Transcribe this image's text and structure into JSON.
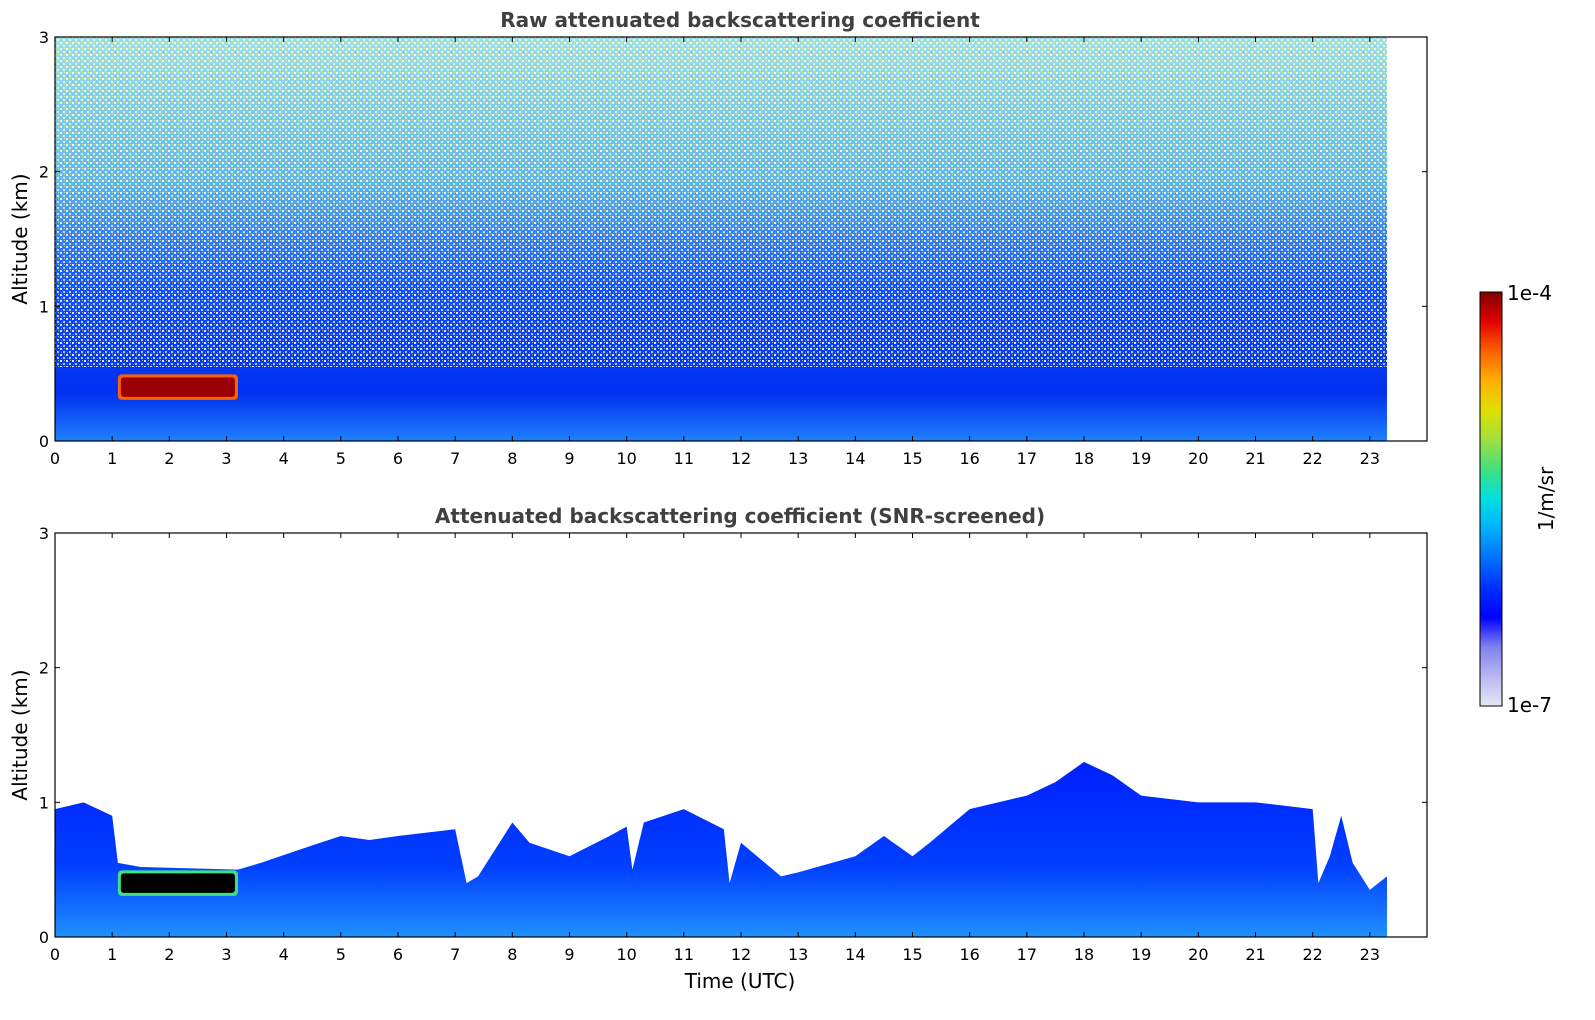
{
  "chart_data": [
    {
      "type": "heatmap",
      "title": "Raw attenuated backscattering coefficient",
      "xlabel": "",
      "ylabel": "Altitude (km)",
      "xlim": [
        0,
        24
      ],
      "ylim": [
        0,
        3
      ],
      "x_ticks": [
        "0",
        "1",
        "2",
        "3",
        "4",
        "5",
        "6",
        "7",
        "8",
        "9",
        "10",
        "11",
        "12",
        "13",
        "14",
        "15",
        "16",
        "17",
        "18",
        "19",
        "20",
        "21",
        "22",
        "23"
      ],
      "y_ticks": [
        "0",
        "1",
        "2",
        "3"
      ],
      "data_extent_hours": [
        0,
        23.3
      ],
      "features": [
        {
          "label": "aerosol layer",
          "x_range": [
            1.1,
            3.2
          ],
          "y_range": [
            0.32,
            0.48
          ],
          "value": "1e-4"
        },
        {
          "label": "boundary layer",
          "x_range": [
            0,
            23.3
          ],
          "y_range": [
            0,
            0.5
          ]
        }
      ]
    },
    {
      "type": "heatmap",
      "title": "Attenuated backscattering coefficient (SNR-screened)",
      "xlabel": "Time (UTC)",
      "ylabel": "Altitude (km)",
      "xlim": [
        0,
        24
      ],
      "ylim": [
        0,
        3
      ],
      "x_ticks": [
        "0",
        "1",
        "2",
        "3",
        "4",
        "5",
        "6",
        "7",
        "8",
        "9",
        "10",
        "11",
        "12",
        "13",
        "14",
        "15",
        "16",
        "17",
        "18",
        "19",
        "20",
        "21",
        "22",
        "23"
      ],
      "y_ticks": [
        "0",
        "1",
        "2",
        "3"
      ],
      "data_extent_hours": [
        0,
        23.3
      ],
      "layer_top_profile": {
        "x": [
          0,
          0.5,
          1.0,
          1.1,
          1.5,
          3.2,
          3.6,
          4.5,
          5.0,
          5.5,
          6.0,
          7.0,
          7.2,
          7.4,
          8.0,
          8.3,
          9.0,
          9.7,
          10.0,
          10.1,
          10.3,
          11.0,
          11.7,
          11.8,
          12.0,
          12.7,
          13.0,
          14.0,
          14.5,
          15.0,
          15.3,
          16.0,
          17.0,
          17.5,
          18.0,
          18.5,
          19.0,
          20.0,
          21.0,
          22.0,
          22.1,
          22.3,
          22.5,
          22.7,
          23.0,
          23.3
        ],
        "y": [
          0.95,
          1.0,
          0.9,
          0.55,
          0.52,
          0.5,
          0.55,
          0.68,
          0.75,
          0.72,
          0.75,
          0.8,
          0.4,
          0.45,
          0.85,
          0.7,
          0.6,
          0.75,
          0.82,
          0.5,
          0.85,
          0.95,
          0.8,
          0.4,
          0.7,
          0.45,
          0.48,
          0.6,
          0.75,
          0.6,
          0.7,
          0.95,
          1.05,
          1.15,
          1.3,
          1.2,
          1.05,
          1.0,
          1.0,
          0.95,
          0.4,
          0.6,
          0.9,
          0.55,
          0.35,
          0.45
        ]
      },
      "features": [
        {
          "label": "aerosol layer",
          "x_range": [
            1.1,
            3.2
          ],
          "y_range": [
            0.32,
            0.48
          ],
          "value": "1e-4"
        }
      ]
    }
  ],
  "colorbar": {
    "label": "1/m/sr",
    "max_label": "1e-4",
    "min_label": "1e-7",
    "colors": [
      "#e8e8f8",
      "#b8b8f0",
      "#8080f0",
      "#0000ff",
      "#0030ff",
      "#0070ff",
      "#00b0ff",
      "#00e0e0",
      "#40e080",
      "#a0e040",
      "#e0e000",
      "#ffb000",
      "#ff6000",
      "#e00000",
      "#800000"
    ]
  }
}
